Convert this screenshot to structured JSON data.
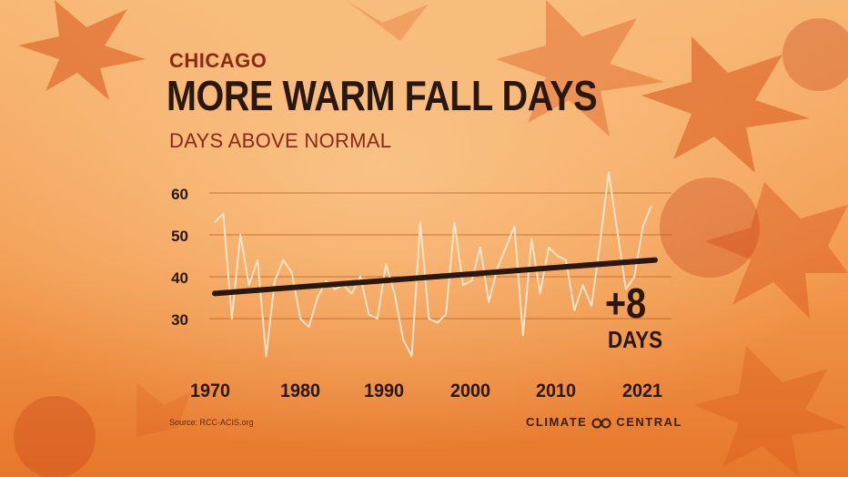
{
  "header": {
    "supertitle": "CHICAGO",
    "title": "MORE WARM FALL DAYS",
    "subtitle": "DAYS ABOVE NORMAL"
  },
  "annotation": {
    "big": "+8",
    "small": "DAYS"
  },
  "footer": {
    "source": "Source: RCC-ACIS.org",
    "brand_left": "CLIMATE",
    "brand_right": "CENTRAL"
  },
  "colors": {
    "background_top": "#f6b06a",
    "background_bottom": "#e8792a",
    "data_line": "#fbe3c8",
    "trend_line": "#2a170d",
    "text_dark": "#2a170d",
    "text_accent": "#8a2a12",
    "gridline": "#b35a22"
  },
  "chart_data": {
    "type": "line",
    "title": "MORE WARM FALL DAYS",
    "subtitle": "DAYS ABOVE NORMAL",
    "xlabel": "",
    "ylabel": "",
    "xlim": [
      1970,
      2021
    ],
    "ylim": [
      20,
      65
    ],
    "x_ticks": [
      1970,
      1980,
      1990,
      2000,
      2010,
      2021
    ],
    "y_ticks": [
      30,
      40,
      50,
      60
    ],
    "grid": true,
    "x": [
      1970,
      1971,
      1972,
      1973,
      1974,
      1975,
      1976,
      1977,
      1978,
      1979,
      1980,
      1981,
      1982,
      1983,
      1984,
      1985,
      1986,
      1987,
      1988,
      1989,
      1990,
      1991,
      1992,
      1993,
      1994,
      1995,
      1996,
      1997,
      1998,
      1999,
      2000,
      2001,
      2002,
      2003,
      2004,
      2005,
      2006,
      2007,
      2008,
      2009,
      2010,
      2011,
      2012,
      2013,
      2014,
      2015,
      2016,
      2017,
      2018,
      2019,
      2020,
      2021
    ],
    "series": [
      {
        "values": [
          53,
          55,
          30,
          50,
          38,
          44,
          21,
          39,
          44,
          41,
          30,
          28,
          35,
          39,
          37,
          38,
          36,
          40,
          31,
          30,
          43,
          36,
          25,
          21,
          53,
          30,
          29,
          31,
          53,
          38,
          39,
          47,
          34,
          42,
          47,
          52,
          26,
          49,
          36,
          47,
          45,
          44,
          32,
          38,
          33,
          48,
          65,
          51,
          37,
          40,
          52,
          57
        ]
      },
      {
        "name": "trend",
        "values_at_ends": [
          36,
          44
        ],
        "style": "trend"
      }
    ]
  }
}
